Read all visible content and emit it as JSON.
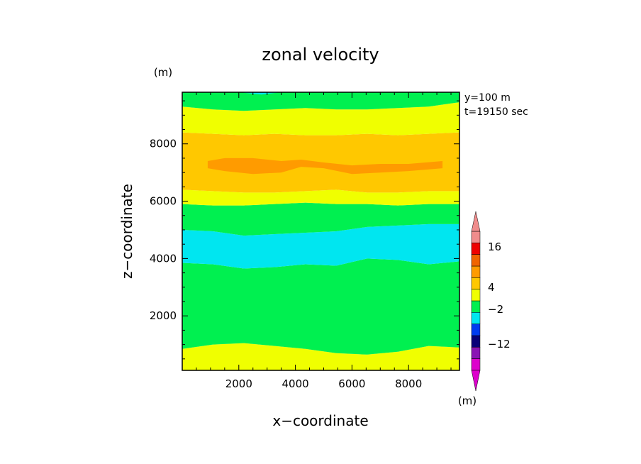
{
  "chart_data": {
    "type": "heatmap",
    "title": "zonal velocity",
    "xlabel": "x−coordinate",
    "ylabel": "z−coordinate",
    "x_unit": "(m)",
    "y_unit": "(m)",
    "colorbar_unit": "(m)",
    "annotations": [
      "y=100 m",
      "t=19150 sec"
    ],
    "xlim": [
      0,
      9800
    ],
    "ylim": [
      100,
      9800
    ],
    "xticks": [
      2000,
      4000,
      6000,
      8000
    ],
    "yticks": [
      2000,
      4000,
      6000,
      8000
    ],
    "colorbar_labels": [
      "16",
      "4",
      "−2",
      "−12"
    ],
    "colors": {
      "magenta": "#dd00cc",
      "purple": "#8a14b4",
      "navy": "#080078",
      "blue": "#003cf0",
      "cyan": "#00e6f0",
      "green": "#00f050",
      "yellow": "#f0ff00",
      "gold": "#ffc800",
      "orange": "#ff9b00",
      "darkorange": "#f06400",
      "red": "#ee0000",
      "pink": "#f08c8c"
    },
    "colorbar_order_bottom_to_top": [
      "magenta",
      "magenta",
      "purple",
      "navy",
      "blue",
      "cyan",
      "green",
      "yellow",
      "gold",
      "orange",
      "darkorange",
      "red",
      "pink",
      "pink"
    ],
    "band_boundaries_z": {
      "yellow_bottom_top": [
        850,
        1000,
        1050,
        950,
        850,
        700,
        650,
        750,
        950,
        900
      ],
      "cyan_bottom": [
        3850,
        3800,
        3650,
        3700,
        3800,
        3750,
        4000,
        3950,
        3800,
        3900
      ],
      "cyan_top": [
        5000,
        4950,
        4800,
        4850,
        4900,
        4950,
        5100,
        5150,
        5200,
        5200
      ],
      "yellow_above_green": [
        5900,
        5850,
        5850,
        5900,
        5950,
        5900,
        5900,
        5850,
        5900,
        5900
      ],
      "gold_bottom": [
        6400,
        6350,
        6300,
        6300,
        6350,
        6400,
        6300,
        6300,
        6350,
        6350
      ],
      "gold_top": [
        8400,
        8350,
        8300,
        8350,
        8300,
        8300,
        8350,
        8300,
        8350,
        8400
      ],
      "green_top_bottom": [
        9300,
        9200,
        9150,
        9200,
        9250,
        9200,
        9200,
        9250,
        9300,
        9450
      ],
      "orange_x": [
        900,
        1500,
        2500,
        3500,
        4200,
        5000,
        6000,
        7000,
        8000,
        9200
      ],
      "orange_bottom": [
        7150,
        7050,
        6950,
        7000,
        7200,
        7150,
        6950,
        7000,
        7050,
        7150
      ],
      "orange_top": [
        7400,
        7500,
        7500,
        7400,
        7450,
        7350,
        7250,
        7300,
        7300,
        7400
      ]
    }
  }
}
